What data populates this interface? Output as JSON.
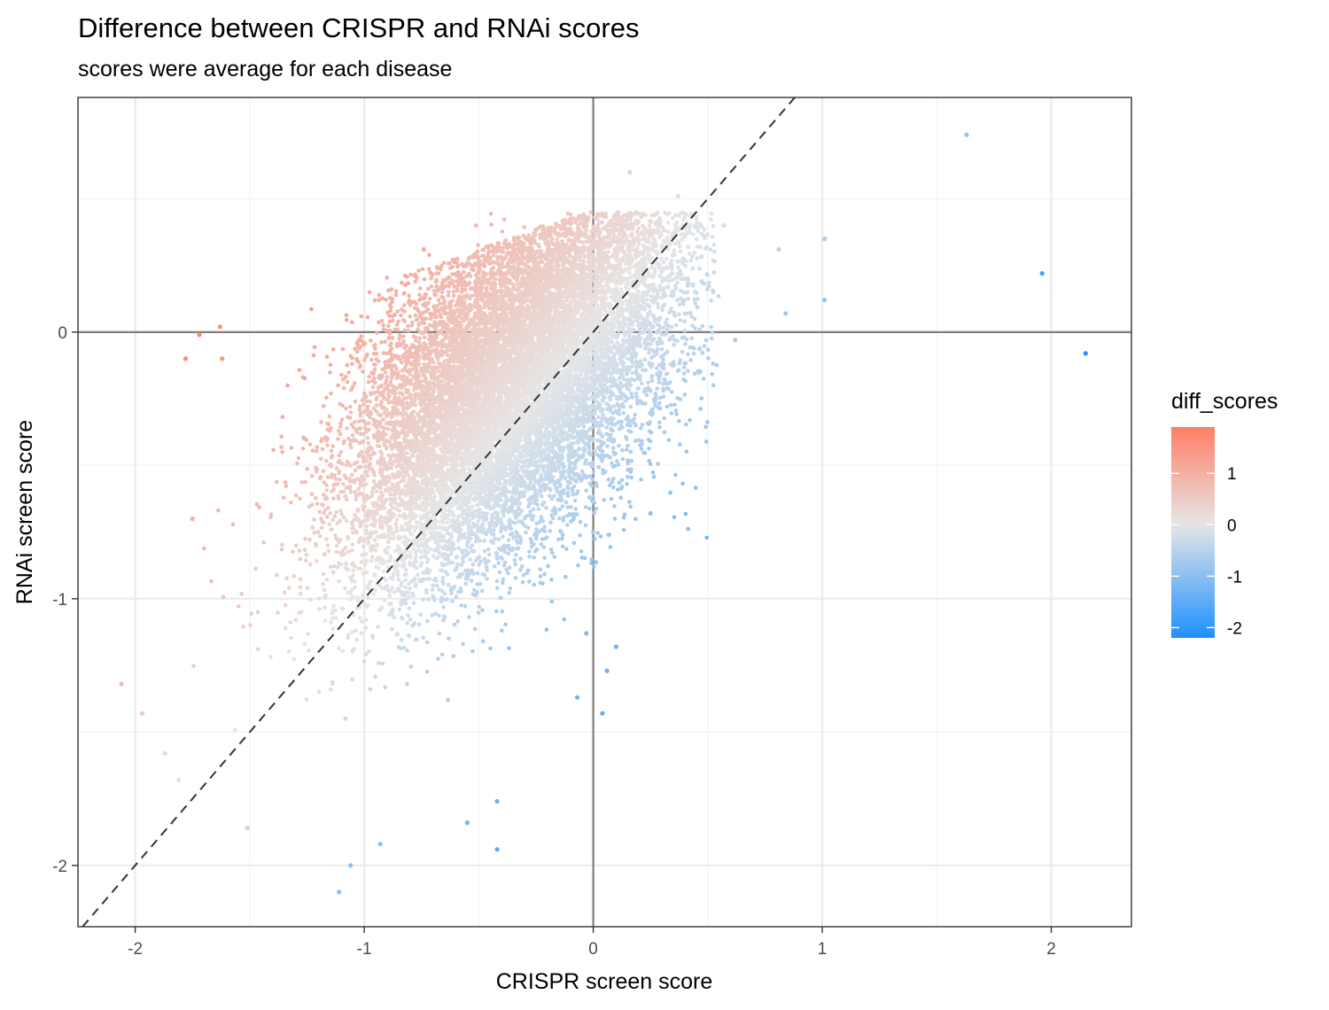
{
  "chart_data": {
    "type": "scatter",
    "title": "Difference between CRISPR and RNAi scores",
    "subtitle": "scores were average for each disease",
    "xlabel": "CRISPR screen score",
    "ylabel": "RNAi screen score",
    "xlim": [
      -2.25,
      2.35
    ],
    "ylim": [
      -2.23,
      0.88
    ],
    "x_ticks": [
      {
        "value": -2,
        "label": "-2"
      },
      {
        "value": -1,
        "label": "-1"
      },
      {
        "value": 0,
        "label": "0"
      },
      {
        "value": 1,
        "label": "1"
      },
      {
        "value": 2,
        "label": "2"
      }
    ],
    "y_ticks": [
      {
        "value": -2,
        "label": "-2"
      },
      {
        "value": -1,
        "label": "-1"
      },
      {
        "value": 0,
        "label": "0"
      }
    ],
    "grid": true,
    "reference_lines": {
      "vertical_x": 0,
      "horizontal_y": 0,
      "diagonal": "y = x (dashed)"
    },
    "color_variable": "diff_scores",
    "color_scale": {
      "low_color": "#1e90ff",
      "mid_color": "#e6e6e6",
      "high_color": "#ff7f66",
      "limits": [
        -2.2,
        1.9
      ],
      "ticks": [
        {
          "value": 1,
          "label": "1"
        },
        {
          "value": 0,
          "label": "0"
        },
        {
          "value": -1,
          "label": "-1"
        },
        {
          "value": -2,
          "label": "-2"
        }
      ]
    },
    "legend": {
      "title": "diff_scores",
      "position": "right"
    },
    "point_count_approx": 14000,
    "notable_points": [
      {
        "x": 1.63,
        "y": 0.74
      },
      {
        "x": 1.96,
        "y": 0.22
      },
      {
        "x": 2.15,
        "y": -0.08
      },
      {
        "x": 1.01,
        "y": 0.35
      },
      {
        "x": 0.81,
        "y": 0.31
      },
      {
        "x": 1.01,
        "y": 0.12
      },
      {
        "x": 0.84,
        "y": 0.07
      },
      {
        "x": 0.62,
        "y": -0.03
      },
      {
        "x": 0.57,
        "y": 0.4
      },
      {
        "x": 0.16,
        "y": 0.6
      },
      {
        "x": 0.37,
        "y": 0.51
      },
      {
        "x": -0.74,
        "y": 0.31
      },
      {
        "x": -2.06,
        "y": -1.32
      },
      {
        "x": -1.97,
        "y": -1.43
      },
      {
        "x": -1.87,
        "y": -1.58
      },
      {
        "x": -1.81,
        "y": -1.68
      },
      {
        "x": -1.75,
        "y": -0.7
      },
      {
        "x": -1.78,
        "y": -0.1
      },
      {
        "x": -1.72,
        "y": -0.01
      },
      {
        "x": -1.63,
        "y": 0.02
      },
      {
        "x": -1.62,
        "y": -0.1
      },
      {
        "x": -1.51,
        "y": -1.86
      },
      {
        "x": -1.11,
        "y": -2.1
      },
      {
        "x": -1.06,
        "y": -2.0
      },
      {
        "x": -0.93,
        "y": -1.92
      },
      {
        "x": -0.55,
        "y": -1.84
      },
      {
        "x": -0.42,
        "y": -1.94
      },
      {
        "x": -0.42,
        "y": -1.76
      },
      {
        "x": 0.04,
        "y": -1.43
      },
      {
        "x": -0.07,
        "y": -1.37
      },
      {
        "x": 0.06,
        "y": -1.27
      },
      {
        "x": 0.1,
        "y": -1.18
      },
      {
        "x": -0.03,
        "y": -1.13
      },
      {
        "x": 0.25,
        "y": -0.68
      }
    ]
  }
}
